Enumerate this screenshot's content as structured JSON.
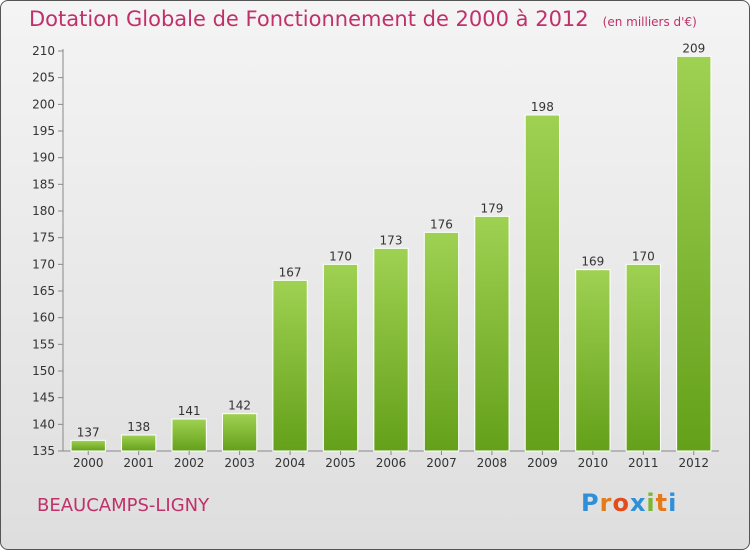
{
  "header": {
    "title": "Dotation Globale de Fonctionnement de 2000 à 2012",
    "subtitle": "(en milliers d'€)"
  },
  "footer": {
    "commune": "BEAUCAMPS-LIGNY",
    "logo_letters": [
      "P",
      "r",
      "o",
      "x",
      "i",
      "t",
      "i"
    ],
    "logo_colors": [
      "#2f8fd8",
      "#e57a1a",
      "#e54a1a",
      "#2f8fd8",
      "#7ab833",
      "#e57a1a",
      "#2f8fd8"
    ]
  },
  "chart_data": {
    "type": "bar",
    "title": "Dotation Globale de Fonctionnement de 2000 à 2012",
    "subtitle": "(en milliers d'€)",
    "categories": [
      "2000",
      "2001",
      "2002",
      "2003",
      "2004",
      "2005",
      "2006",
      "2007",
      "2008",
      "2009",
      "2010",
      "2011",
      "2012"
    ],
    "values": [
      137,
      138,
      141,
      142,
      167,
      170,
      173,
      176,
      179,
      198,
      169,
      170,
      209
    ],
    "ylim": [
      135,
      210
    ],
    "yticks": [
      135,
      140,
      145,
      150,
      155,
      160,
      165,
      170,
      175,
      180,
      185,
      190,
      195,
      200,
      205,
      210
    ],
    "grid": false,
    "bar_color_top": "#9fd152",
    "bar_color_bottom": "#64a01a"
  }
}
